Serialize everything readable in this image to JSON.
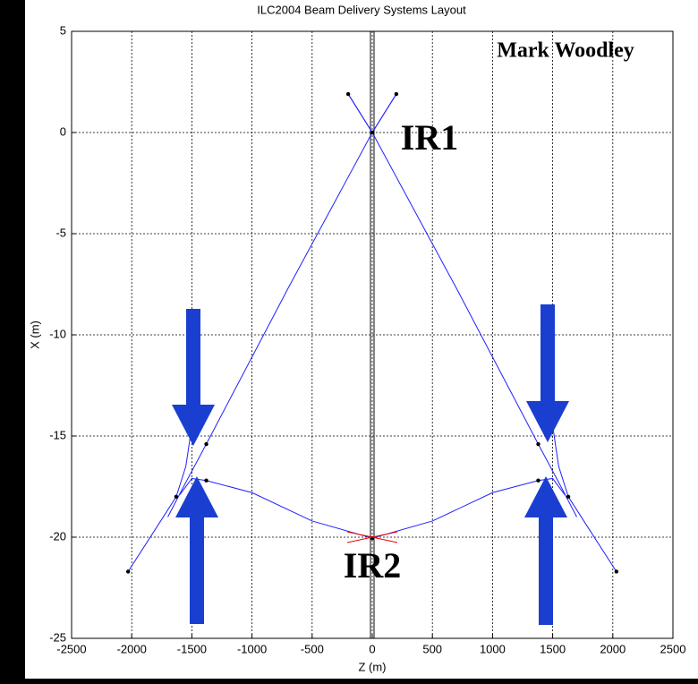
{
  "chart_data": {
    "type": "line",
    "title": "ILC2004 Beam Delivery Systems Layout",
    "xlabel": "Z (m)",
    "ylabel": "X (m)",
    "annotations": [
      "Mark Woodley",
      "IR1",
      "IR2"
    ],
    "xlim": [
      -2500,
      2500
    ],
    "xticks": [
      -2500,
      -2000,
      -1500,
      -1000,
      -500,
      0,
      500,
      1000,
      1500,
      2000,
      2500
    ],
    "ylim": [
      -25,
      5
    ],
    "yticks": [
      5,
      0,
      -5,
      -10,
      -15,
      -20,
      -25
    ],
    "grid": true,
    "series": [
      {
        "color": "#2020ff",
        "x": [
          -200,
          0,
          200
        ],
        "values": [
          1.9,
          0,
          1.9
        ]
      },
      {
        "color": "#2020ff",
        "x": [
          -200,
          0,
          700,
          1380,
          1560,
          1700
        ],
        "values": [
          1.9,
          0,
          -7.7,
          -15.4,
          -17.4,
          -19
        ]
      },
      {
        "color": "#2020ff",
        "x": [
          200,
          0,
          -700,
          -1380,
          -1560,
          -1700
        ],
        "values": [
          1.9,
          0,
          -7.7,
          -15.4,
          -17.4,
          -19
        ]
      },
      {
        "color": "#2020ff",
        "x": [
          -2030,
          -1770,
          -1630,
          -1550,
          -1500
        ],
        "values": [
          -21.7,
          -19.3,
          -18,
          -16.5,
          -14.5
        ]
      },
      {
        "color": "#2020ff",
        "x": [
          2030,
          1770,
          1630,
          1550,
          1500
        ],
        "values": [
          -21.7,
          -19.3,
          -18,
          -16.5,
          -14.5
        ]
      },
      {
        "color": "#2020ff",
        "x": [
          -1600,
          -1500,
          -1380,
          -1000,
          -500,
          0,
          500,
          1000,
          1380,
          1500,
          1600
        ],
        "values": [
          -17.9,
          -17.1,
          -17.2,
          -17.8,
          -19.2,
          -20.05,
          -19.2,
          -17.8,
          -17.2,
          -17.1,
          -17.9
        ]
      }
    ],
    "dots": {
      "color": "#000000",
      "x": [
        -200,
        200,
        0,
        -1380,
        1380,
        -1380,
        1380,
        -1630,
        1630,
        -2030,
        2030,
        0
      ],
      "values": [
        1.9,
        1.9,
        0,
        -15.4,
        -15.4,
        -17.2,
        -17.2,
        -18,
        -18,
        -21.7,
        -21.7,
        -20.05
      ]
    }
  }
}
